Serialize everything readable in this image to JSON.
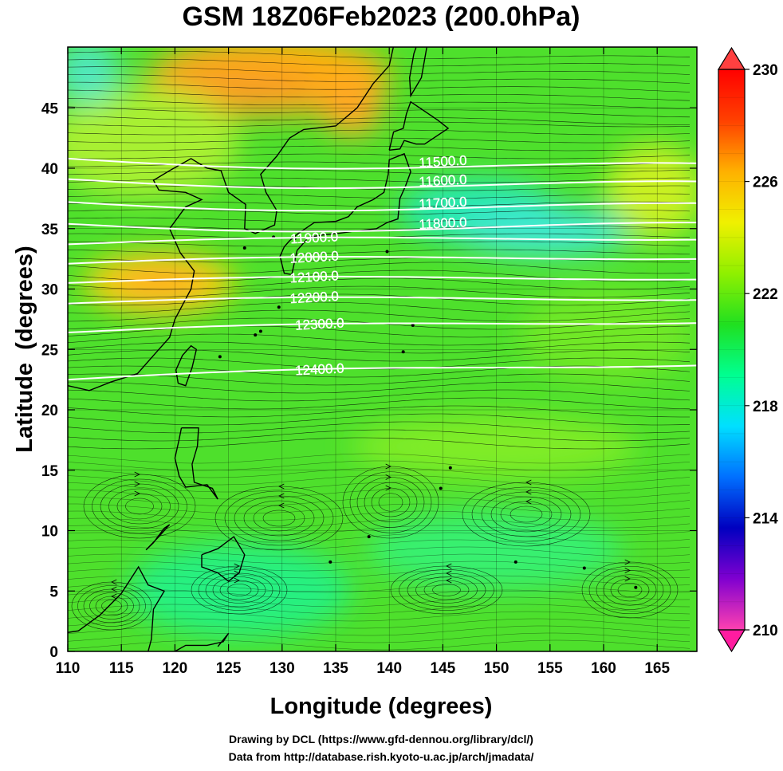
{
  "title": "GSM 18Z06Feb2023 (200.0hPa)",
  "xlabel": "Longitude (degrees)",
  "ylabel": "Latitude  (degrees)",
  "x_ticks": [
    "110",
    "115",
    "120",
    "125",
    "130",
    "135",
    "140",
    "145",
    "150",
    "155",
    "160",
    "165"
  ],
  "y_ticks": [
    "0",
    "5",
    "10",
    "15",
    "20",
    "25",
    "30",
    "35",
    "40",
    "45"
  ],
  "colorbar": {
    "labels": [
      "230",
      "226",
      "222",
      "218",
      "214",
      "210"
    ],
    "min": 210,
    "max": 230,
    "colors": [
      "#ff40b0",
      "#8000d0",
      "#0000c0",
      "#0070ff",
      "#00e0ff",
      "#00ff90",
      "#20e020",
      "#90f000",
      "#f0f000",
      "#ffb000",
      "#ff4000",
      "#ff0000"
    ]
  },
  "contours": [
    {
      "label": "11500.0",
      "lat_start": 40.8,
      "lat_end": 39.9
    },
    {
      "label": "11600.0",
      "lat_start": 39.1,
      "lat_end": 38.4
    },
    {
      "label": "11700.0",
      "lat_start": 37.2,
      "lat_end": 36.6
    },
    {
      "label": "11800.0",
      "lat_start": 35.4,
      "lat_end": 35.0
    },
    {
      "label": "11900.0",
      "lat_start": 33.7,
      "lat_end": 34.4
    },
    {
      "label": "12000.0",
      "lat_start": 32.1,
      "lat_end": 32.8
    },
    {
      "label": "12100.0",
      "lat_start": 30.5,
      "lat_end": 31.1
    },
    {
      "label": "12200.0",
      "lat_start": 28.8,
      "lat_end": 29.4
    },
    {
      "label": "12300.0",
      "lat_start": 26.4,
      "lat_end": 27.5
    },
    {
      "label": "12400.0",
      "lat_start": 22.5,
      "lat_end": 24.0
    }
  ],
  "footer": {
    "line1": "Drawing by DCL (https://www.gfd-dennou.org/library/dcl/)",
    "line2": "Data from http://database.rish.kyoto-u.ac.jp/arch/jmadata/"
  }
}
